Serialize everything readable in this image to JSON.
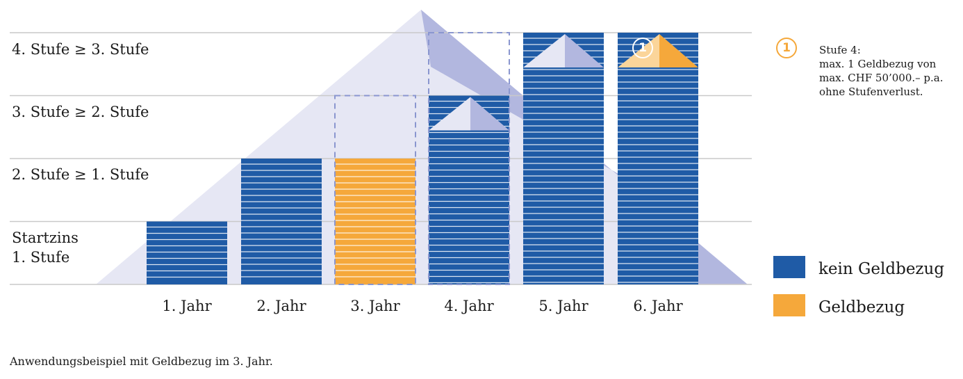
{
  "chart_data": {
    "type": "bar",
    "categories": [
      "1. Jahr",
      "2. Jahr",
      "3. Jahr",
      "4. Jahr",
      "5. Jahr",
      "6. Jahr"
    ],
    "values": [
      1,
      2,
      2,
      3,
      4,
      4
    ],
    "withdrawal": [
      false,
      false,
      true,
      false,
      false,
      false
    ],
    "level_labels": [
      "Startzins\n1. Stufe",
      "2. Stufe ≥ 1. Stufe",
      "3. Stufe ≥ 2. Stufe",
      "4. Stufe ≥ 3. Stufe"
    ],
    "ylim": [
      0,
      4
    ],
    "grid": true,
    "legend": {
      "position": "right",
      "items": [
        {
          "label": "kein Geldbezug",
          "color": "#1f5ba6"
        },
        {
          "label": "Geldbezug",
          "color": "#f5a83b"
        }
      ]
    },
    "note": {
      "marker": "1",
      "lines": [
        "Stufe 4:",
        "max. 1 Geldbezug von",
        "max. CHF 50’000.– p.a.",
        "ohne Stufenverlust."
      ]
    },
    "caption": "Anwendungsbeispiel mit Geldbezug im 3. Jahr."
  },
  "colors": {
    "blue": "#1f5ba6",
    "orange": "#f5a83b",
    "mountain_light": "#e6e7f4",
    "mountain_dark": "#b2b7df",
    "grid": "#c9c9c9",
    "dash": "#8a96cf"
  }
}
